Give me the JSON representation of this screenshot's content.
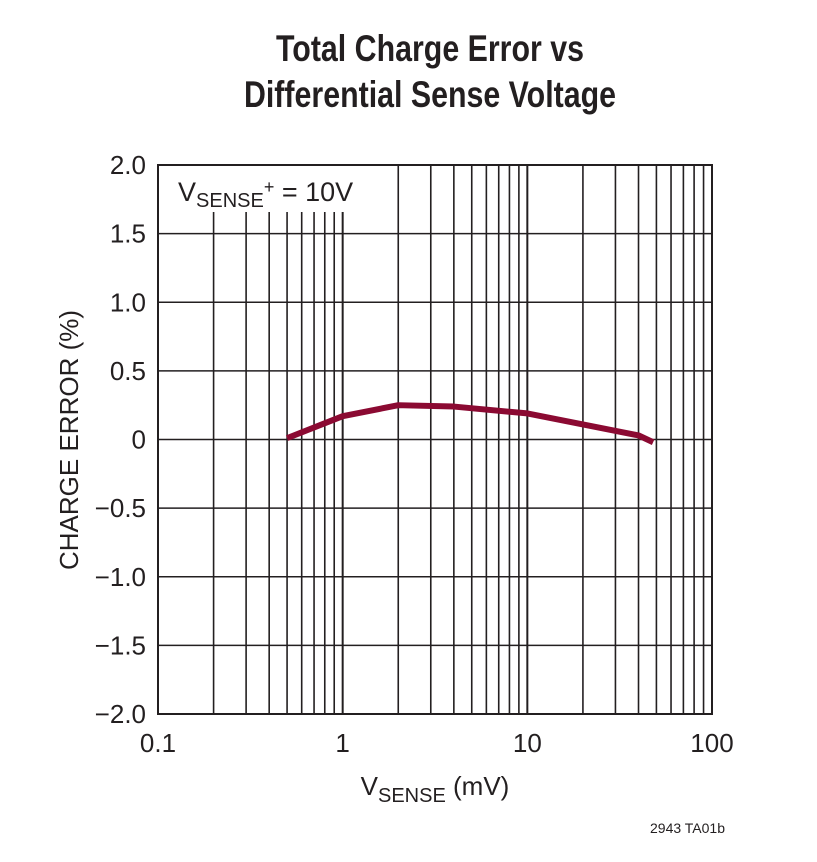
{
  "chart_data": {
    "type": "line",
    "title": [
      "Total Charge Error vs",
      "Differential Sense Voltage"
    ],
    "xlabel": {
      "main": "V",
      "sub": "SENSE",
      "rest": " (mV)"
    },
    "ylabel": "CHARGE ERROR (%)",
    "xscale": "log",
    "xlim": [
      0.1,
      100
    ],
    "ylim": [
      -2.0,
      2.0
    ],
    "xticks": [
      "0.1",
      "1",
      "10",
      "100"
    ],
    "yticks": [
      "2.0",
      "1.5",
      "1.0",
      "0.5",
      "0",
      "−0.5",
      "−1.0",
      "−1.5",
      "−2.0"
    ],
    "grid": true,
    "annotation": {
      "main": "V",
      "sub": "SENSE",
      "sup": "+",
      "rest": " = 10V"
    },
    "series": [
      {
        "color": "#8b0a32",
        "x": [
          0.5,
          1,
          2,
          4,
          10,
          40,
          48
        ],
        "y": [
          0.01,
          0.17,
          0.25,
          0.24,
          0.19,
          0.03,
          -0.02
        ]
      }
    ],
    "footnote": "2943 TA01b"
  }
}
